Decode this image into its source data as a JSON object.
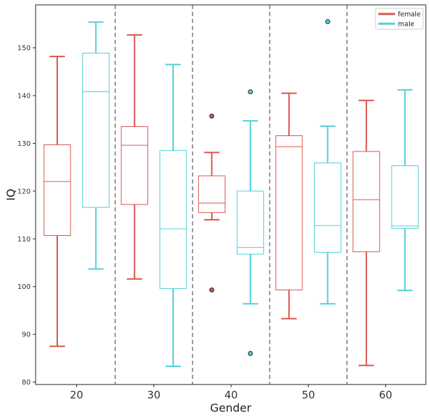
{
  "chart_data": {
    "type": "boxplot",
    "title": "",
    "xlabel": "Gender",
    "ylabel": "IQ",
    "ylim": [
      79.5,
      159
    ],
    "y_ticks": [
      80,
      90,
      100,
      110,
      120,
      130,
      140,
      150
    ],
    "categories": [
      "20",
      "30",
      "40",
      "50",
      "60"
    ],
    "x_values": [
      20,
      30,
      40,
      50,
      60
    ],
    "xlim": [
      14.7,
      65.2
    ],
    "separators": [
      25,
      35,
      45,
      55
    ],
    "legend": {
      "position": "top-right"
    },
    "series": [
      {
        "name": "female",
        "color": "#d9544d",
        "offset": -2.5,
        "boxes": [
          {
            "category": "20",
            "whislo": 87.5,
            "q1": 110.7,
            "med": 122.0,
            "q3": 129.7,
            "whishi": 148.2,
            "fliers": []
          },
          {
            "category": "30",
            "whislo": 101.6,
            "q1": 117.2,
            "med": 129.6,
            "q3": 133.5,
            "whishi": 152.7,
            "fliers": []
          },
          {
            "category": "40",
            "whislo": 114.0,
            "q1": 115.5,
            "med": 117.5,
            "q3": 123.2,
            "whishi": 128.1,
            "fliers": [
              135.7,
              99.3
            ]
          },
          {
            "category": "50",
            "whislo": 93.3,
            "q1": 99.3,
            "med": 129.3,
            "q3": 131.6,
            "whishi": 140.5,
            "fliers": []
          },
          {
            "category": "60",
            "whislo": 83.5,
            "q1": 107.3,
            "med": 118.2,
            "q3": 128.3,
            "whishi": 139.0,
            "fliers": []
          }
        ]
      },
      {
        "name": "male",
        "color": "#4fd0d6",
        "offset": 2.5,
        "boxes": [
          {
            "category": "20",
            "whislo": 103.7,
            "q1": 116.6,
            "med": 140.8,
            "q3": 148.9,
            "whishi": 155.4,
            "fliers": []
          },
          {
            "category": "30",
            "whislo": 83.3,
            "q1": 99.6,
            "med": 112.1,
            "q3": 128.5,
            "whishi": 146.5,
            "fliers": []
          },
          {
            "category": "40",
            "whislo": 96.4,
            "q1": 106.8,
            "med": 108.2,
            "q3": 120.0,
            "whishi": 134.7,
            "fliers": [
              140.8,
              86.0
            ]
          },
          {
            "category": "50",
            "whislo": 96.4,
            "q1": 107.2,
            "med": 112.8,
            "q3": 125.9,
            "whishi": 133.6,
            "fliers": [
              155.5
            ]
          },
          {
            "category": "60",
            "whislo": 99.2,
            "q1": 112.2,
            "med": 112.7,
            "q3": 125.3,
            "whishi": 141.2,
            "fliers": []
          }
        ]
      }
    ]
  }
}
